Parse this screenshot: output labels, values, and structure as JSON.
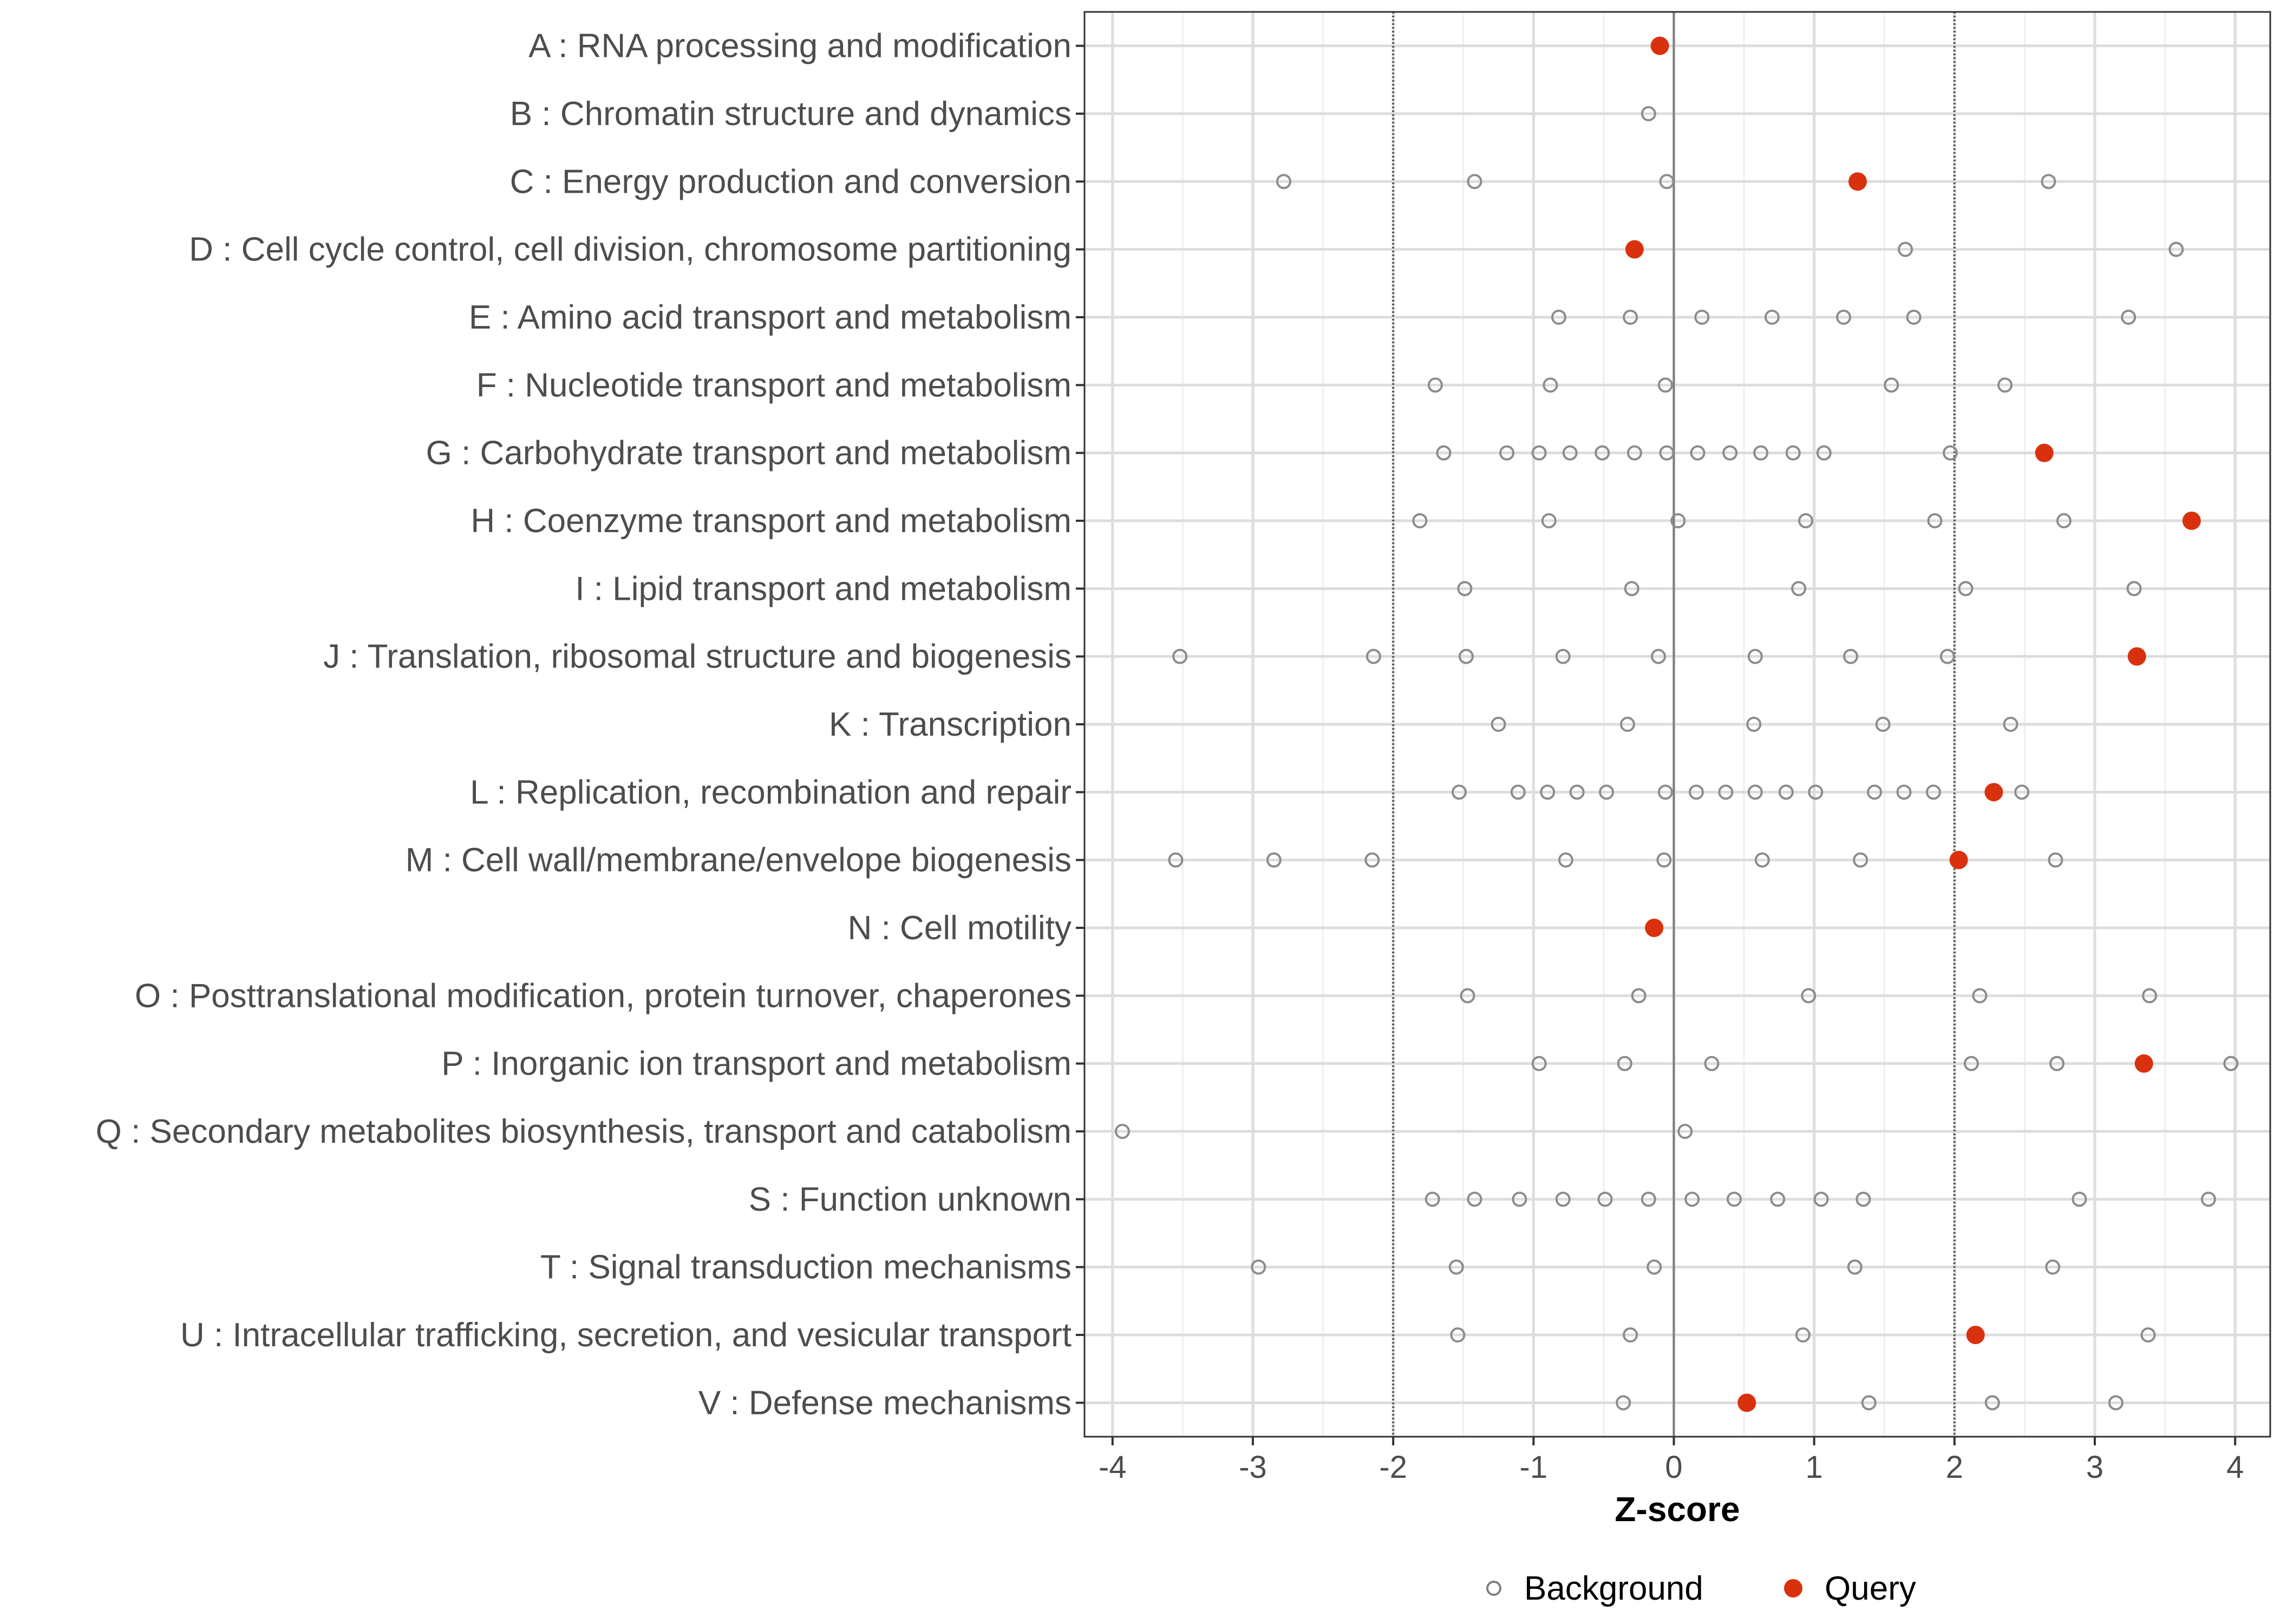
{
  "chart_data": {
    "type": "scatter",
    "title": "",
    "xlabel": "Z-score",
    "ylabel": "",
    "xlim": [
      -4.2,
      4.25
    ],
    "x_ticks": [
      -4,
      -3,
      -2,
      -1,
      0,
      1,
      2,
      3,
      4
    ],
    "x_tick_labels": [
      "-4",
      "-3",
      "-2",
      "-1",
      "0",
      "1",
      "2",
      "3",
      "4"
    ],
    "reference_lines": [
      {
        "x": -2,
        "style": "dotted"
      },
      {
        "x": 0,
        "style": "solid"
      },
      {
        "x": 2,
        "style": "dotted"
      }
    ],
    "grid": true,
    "legend": {
      "position": "bottom",
      "entries": [
        {
          "label": "Background",
          "marker": "open-circle",
          "color": "#808080"
        },
        {
          "label": "Query",
          "marker": "filled-circle",
          "color": "#d9310e"
        }
      ]
    },
    "categories": [
      "A : RNA processing and modification",
      "B : Chromatin structure and dynamics",
      "C : Energy production and conversion",
      "D : Cell cycle control, cell division, chromosome partitioning",
      "E : Amino acid transport and metabolism",
      "F : Nucleotide transport and metabolism",
      "G : Carbohydrate transport and metabolism",
      "H : Coenzyme transport and metabolism",
      "I : Lipid transport and metabolism",
      "J : Translation, ribosomal structure and biogenesis",
      "K : Transcription",
      "L : Replication, recombination and repair",
      "M : Cell wall/membrane/envelope biogenesis",
      "N : Cell motility",
      "O : Posttranslational modification, protein turnover, chaperones",
      "P : Inorganic ion transport and metabolism",
      "Q : Secondary metabolites biosynthesis, transport and catabolism",
      "S : Function unknown",
      "T : Signal transduction mechanisms",
      "U : Intracellular trafficking, secretion, and vesicular transport",
      "V : Defense mechanisms"
    ],
    "series": [
      {
        "name": "Background",
        "values": [
          [],
          [
            -0.18
          ],
          [
            -2.78,
            -1.42,
            -0.05,
            2.67
          ],
          [
            1.65,
            3.58
          ],
          [
            -0.82,
            -0.31,
            0.2,
            0.7,
            1.21,
            1.71,
            3.24
          ],
          [
            -1.7,
            -0.88,
            -0.06,
            1.55,
            2.36
          ],
          [
            -1.64,
            -1.19,
            -0.96,
            -0.74,
            -0.51,
            -0.28,
            -0.05,
            0.17,
            0.4,
            0.62,
            0.85,
            1.07,
            1.97
          ],
          [
            -1.81,
            -0.89,
            0.03,
            0.94,
            1.86,
            2.78
          ],
          [
            -1.49,
            -0.3,
            0.89,
            2.08,
            3.28
          ],
          [
            -3.52,
            -2.14,
            -1.48,
            -0.79,
            -0.11,
            0.58,
            1.26,
            1.95
          ],
          [
            -1.25,
            -0.33,
            0.57,
            1.49,
            2.4
          ],
          [
            -1.53,
            -1.11,
            -0.9,
            -0.69,
            -0.48,
            -0.06,
            0.16,
            0.37,
            0.58,
            0.8,
            1.01,
            1.43,
            1.64,
            1.85,
            2.48
          ],
          [
            -3.55,
            -2.85,
            -2.15,
            -0.77,
            -0.07,
            0.63,
            1.33,
            2.72
          ],
          [],
          [
            -1.47,
            -0.25,
            0.96,
            2.18,
            3.39
          ],
          [
            -0.96,
            -0.35,
            0.27,
            2.12,
            2.73,
            3.97
          ],
          [
            -3.93,
            0.08
          ],
          [
            -1.72,
            -1.42,
            -1.1,
            -0.79,
            -0.49,
            -0.18,
            0.13,
            0.43,
            0.74,
            1.05,
            1.35,
            2.89,
            3.81
          ],
          [
            -2.96,
            -1.55,
            -0.14,
            1.29,
            2.7
          ],
          [
            -1.54,
            -0.31,
            0.92,
            2.15,
            3.38
          ],
          [
            -0.36,
            1.39,
            2.27,
            3.15
          ]
        ]
      },
      {
        "name": "Query",
        "values": [
          -0.1,
          null,
          1.31,
          -0.28,
          null,
          null,
          2.64,
          3.69,
          null,
          3.3,
          null,
          2.28,
          2.03,
          -0.14,
          null,
          3.35,
          null,
          null,
          null,
          2.15,
          0.52
        ]
      }
    ]
  }
}
